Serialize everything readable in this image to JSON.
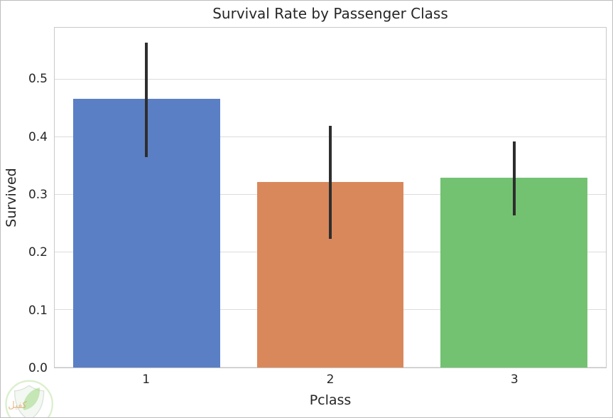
{
  "figure": {
    "background": "#ffffff",
    "border_color": "#bdbdbd"
  },
  "chart_data": {
    "type": "bar",
    "title": "Survival Rate by Passenger Class",
    "xlabel": "Pclass",
    "ylabel": "Survived",
    "categories": [
      "1",
      "2",
      "3"
    ],
    "values": [
      0.466,
      0.322,
      0.33
    ],
    "ci_low": [
      0.365,
      0.224,
      0.264
    ],
    "ci_high": [
      0.564,
      0.42,
      0.393
    ],
    "bar_colors": [
      "#5b7fc4",
      "#d9885c",
      "#72c272"
    ],
    "errorbar_color": "#2e2e2e",
    "ylim": [
      0,
      0.59
    ],
    "yticks": [
      0,
      0.1,
      0.2,
      0.3,
      0.4,
      0.5
    ],
    "ytick_labels": [
      "0.0",
      "0.1",
      "0.2",
      "0.3",
      "0.4",
      "0.5"
    ],
    "grid": true,
    "grid_color": "#dcdcdc",
    "spine_color": "#c9c9c9",
    "text_color": "#262626",
    "bar_width_frac": 0.8,
    "legend": null
  },
  "watermark": {
    "text": "كفيل",
    "text_color": "#d9a05f",
    "ring_color": "#bfe3a6",
    "shield_fill": "#e9f2e9",
    "shield_stroke": "#b9c9b9",
    "leaf_color": "#8fd06a"
  }
}
